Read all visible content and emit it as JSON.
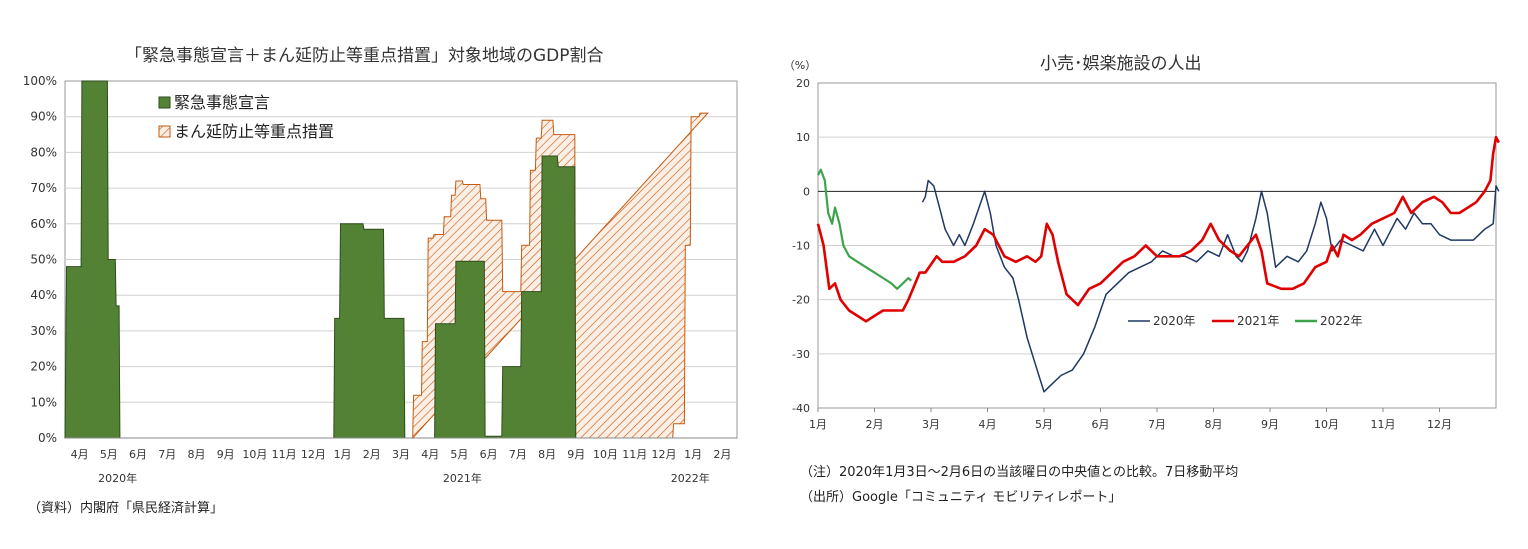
{
  "left": {
    "source": "（資料）内閣府「県民経済計算」",
    "chart_data": {
      "type": "area",
      "title": "「緊急事態宣言＋まん延防止等重点措置」対象地域のGDP割合",
      "ylim": [
        0,
        100
      ],
      "yticks": [
        "0%",
        "10%",
        "20%",
        "30%",
        "40%",
        "50%",
        "60%",
        "70%",
        "80%",
        "90%",
        "100%"
      ],
      "month_labels": [
        "4月",
        "5月",
        "6月",
        "7月",
        "8月",
        "9月",
        "10月",
        "11月",
        "12月",
        "1月",
        "2月",
        "3月",
        "4月",
        "5月",
        "6月",
        "7月",
        "8月",
        "9月",
        "10月",
        "11月",
        "12月",
        "1月",
        "2月"
      ],
      "year_labels": [
        {
          "label": "2020年",
          "month_index": 1.8
        },
        {
          "label": "2021年",
          "month_index": 13.6
        },
        {
          "label": "2022年",
          "month_index": 21.4
        }
      ],
      "series": [
        {
          "name": "緊急事態宣言",
          "color": "#548235",
          "points": [
            [
              0.0,
              0
            ],
            [
              0.05,
              48
            ],
            [
              0.55,
              48
            ],
            [
              0.58,
              100
            ],
            [
              1.45,
              100
            ],
            [
              1.48,
              50
            ],
            [
              1.72,
              50
            ],
            [
              1.75,
              37
            ],
            [
              1.85,
              37
            ],
            [
              1.88,
              0
            ],
            [
              9.2,
              0
            ],
            [
              9.23,
              33.5
            ],
            [
              9.4,
              33.5
            ],
            [
              9.43,
              60
            ],
            [
              10.2,
              60
            ],
            [
              10.23,
              58.5
            ],
            [
              10.9,
              58.5
            ],
            [
              10.93,
              33.5
            ],
            [
              11.6,
              33.5
            ],
            [
              11.63,
              0
            ],
            [
              12.65,
              0
            ],
            [
              12.68,
              32
            ],
            [
              13.35,
              32
            ],
            [
              13.38,
              49.5
            ],
            [
              14.35,
              49.5
            ],
            [
              14.38,
              0.5
            ],
            [
              14.95,
              0.5
            ],
            [
              14.98,
              20
            ],
            [
              15.6,
              20
            ],
            [
              15.63,
              41
            ],
            [
              16.3,
              41
            ],
            [
              16.33,
              79
            ],
            [
              16.85,
              79
            ],
            [
              16.88,
              76
            ],
            [
              17.45,
              76
            ],
            [
              17.48,
              0
            ]
          ]
        },
        {
          "name": "まん延防止等重点措置",
          "color": "#C55A11",
          "points": [
            [
              11.9,
              0
            ],
            [
              11.93,
              12
            ],
            [
              12.2,
              12
            ],
            [
              12.23,
              27
            ],
            [
              12.4,
              27
            ],
            [
              12.43,
              56
            ],
            [
              12.6,
              56
            ],
            [
              12.63,
              57
            ],
            [
              12.95,
              57
            ],
            [
              12.98,
              62
            ],
            [
              13.2,
              62
            ],
            [
              13.23,
              68
            ],
            [
              13.35,
              68
            ],
            [
              13.38,
              72
            ],
            [
              13.6,
              72
            ],
            [
              13.63,
              71
            ],
            [
              14.2,
              71
            ],
            [
              14.23,
              67
            ],
            [
              14.4,
              67
            ],
            [
              14.43,
              61
            ],
            [
              14.95,
              61
            ],
            [
              14.98,
              41
            ],
            [
              15.6,
              41
            ],
            [
              15.63,
              54
            ],
            [
              15.9,
              54
            ],
            [
              15.93,
              75
            ],
            [
              16.1,
              75
            ],
            [
              16.13,
              84
            ],
            [
              16.3,
              84
            ],
            [
              16.33,
              89
            ],
            [
              16.7,
              89
            ],
            [
              16.73,
              85
            ],
            [
              17.45,
              85
            ],
            [
              17.48,
              0
            ],
            [
              20.8,
              0
            ],
            [
              20.83,
              4
            ],
            [
              21.2,
              4
            ],
            [
              21.23,
              54
            ],
            [
              21.4,
              54
            ],
            [
              21.43,
              90
            ],
            [
              21.7,
              90
            ],
            [
              21.73,
              91
            ],
            [
              22.0,
              91
            ]
          ]
        }
      ]
    }
  },
  "right": {
    "notes": [
      "（注）2020年1月3日～2月6日の当該曜日の中央値との比較。7日移動平均",
      "（出所）Google「コミュニティ モビリティレポート」"
    ],
    "chart_data": {
      "type": "line",
      "title": "小売･娯楽施設の人出",
      "ylabel": "（%）",
      "ylim": [
        -40,
        20
      ],
      "yticks": [
        "-40",
        "-30",
        "-20",
        "-10",
        "0",
        "10",
        "20"
      ],
      "month_labels": [
        "1月",
        "2月",
        "3月",
        "4月",
        "5月",
        "6月",
        "7月",
        "8月",
        "9月",
        "10月",
        "11月",
        "12月"
      ],
      "series": [
        {
          "name": "2020年",
          "color": "#1F3864",
          "points": [
            [
              1.85,
              -2
            ],
            [
              1.9,
              -1
            ],
            [
              1.95,
              2
            ],
            [
              2.05,
              1
            ],
            [
              2.15,
              -3
            ],
            [
              2.25,
              -7
            ],
            [
              2.4,
              -10
            ],
            [
              2.5,
              -8
            ],
            [
              2.6,
              -10
            ],
            [
              2.75,
              -6
            ],
            [
              2.85,
              -3
            ],
            [
              2.95,
              0
            ],
            [
              3.05,
              -4
            ],
            [
              3.15,
              -10
            ],
            [
              3.3,
              -14
            ],
            [
              3.45,
              -16
            ],
            [
              3.55,
              -20
            ],
            [
              3.7,
              -27
            ],
            [
              3.85,
              -32
            ],
            [
              4.0,
              -37
            ],
            [
              4.1,
              -36
            ],
            [
              4.3,
              -34
            ],
            [
              4.5,
              -33
            ],
            [
              4.7,
              -30
            ],
            [
              4.9,
              -25
            ],
            [
              5.1,
              -19
            ],
            [
              5.3,
              -17
            ],
            [
              5.5,
              -15
            ],
            [
              5.7,
              -14
            ],
            [
              5.9,
              -13
            ],
            [
              6.1,
              -11
            ],
            [
              6.3,
              -12
            ],
            [
              6.5,
              -12
            ],
            [
              6.7,
              -13
            ],
            [
              6.9,
              -11
            ],
            [
              7.1,
              -12
            ],
            [
              7.25,
              -8
            ],
            [
              7.4,
              -12
            ],
            [
              7.5,
              -13
            ],
            [
              7.6,
              -11
            ],
            [
              7.75,
              -5
            ],
            [
              7.85,
              0
            ],
            [
              7.95,
              -4
            ],
            [
              8.1,
              -14
            ],
            [
              8.3,
              -12
            ],
            [
              8.5,
              -13
            ],
            [
              8.65,
              -11
            ],
            [
              8.8,
              -6
            ],
            [
              8.9,
              -2
            ],
            [
              9.0,
              -5
            ],
            [
              9.1,
              -11
            ],
            [
              9.25,
              -9
            ],
            [
              9.45,
              -10
            ],
            [
              9.65,
              -11
            ],
            [
              9.85,
              -7
            ],
            [
              10.0,
              -10
            ],
            [
              10.1,
              -8
            ],
            [
              10.25,
              -5
            ],
            [
              10.4,
              -7
            ],
            [
              10.55,
              -4
            ],
            [
              10.7,
              -6
            ],
            [
              10.85,
              -6
            ],
            [
              11.0,
              -8
            ],
            [
              11.2,
              -9
            ],
            [
              11.4,
              -9
            ],
            [
              11.6,
              -9
            ],
            [
              11.8,
              -7
            ],
            [
              11.95,
              -6
            ],
            [
              12.0,
              1
            ],
            [
              12.05,
              0
            ]
          ]
        },
        {
          "name": "2021年",
          "color": "#E00000",
          "points": [
            [
              0.0,
              -6
            ],
            [
              0.1,
              -10
            ],
            [
              0.2,
              -18
            ],
            [
              0.3,
              -17
            ],
            [
              0.4,
              -20
            ],
            [
              0.55,
              -22
            ],
            [
              0.7,
              -23
            ],
            [
              0.85,
              -24
            ],
            [
              1.0,
              -23
            ],
            [
              1.15,
              -22
            ],
            [
              1.3,
              -22
            ],
            [
              1.5,
              -22
            ],
            [
              1.6,
              -20
            ],
            [
              1.8,
              -15
            ],
            [
              1.9,
              -15
            ],
            [
              2.1,
              -12
            ],
            [
              2.2,
              -13
            ],
            [
              2.4,
              -13
            ],
            [
              2.6,
              -12
            ],
            [
              2.8,
              -10
            ],
            [
              2.95,
              -7
            ],
            [
              3.1,
              -8
            ],
            [
              3.3,
              -12
            ],
            [
              3.5,
              -13
            ],
            [
              3.7,
              -12
            ],
            [
              3.85,
              -13
            ],
            [
              3.95,
              -12
            ],
            [
              4.05,
              -6
            ],
            [
              4.15,
              -8
            ],
            [
              4.25,
              -13
            ],
            [
              4.4,
              -19
            ],
            [
              4.6,
              -21
            ],
            [
              4.8,
              -18
            ],
            [
              5.0,
              -17
            ],
            [
              5.2,
              -15
            ],
            [
              5.4,
              -13
            ],
            [
              5.6,
              -12
            ],
            [
              5.8,
              -10
            ],
            [
              6.0,
              -12
            ],
            [
              6.2,
              -12
            ],
            [
              6.4,
              -12
            ],
            [
              6.6,
              -11
            ],
            [
              6.8,
              -9
            ],
            [
              6.95,
              -6
            ],
            [
              7.1,
              -9
            ],
            [
              7.3,
              -11
            ],
            [
              7.45,
              -12
            ],
            [
              7.6,
              -10
            ],
            [
              7.75,
              -8
            ],
            [
              7.85,
              -11
            ],
            [
              7.95,
              -17
            ],
            [
              8.2,
              -18
            ],
            [
              8.4,
              -18
            ],
            [
              8.6,
              -17
            ],
            [
              8.8,
              -14
            ],
            [
              9.0,
              -13
            ],
            [
              9.1,
              -10
            ],
            [
              9.2,
              -12
            ],
            [
              9.3,
              -8
            ],
            [
              9.45,
              -9
            ],
            [
              9.6,
              -8
            ],
            [
              9.8,
              -6
            ],
            [
              10.0,
              -5
            ],
            [
              10.2,
              -4
            ],
            [
              10.35,
              -1
            ],
            [
              10.5,
              -4
            ],
            [
              10.7,
              -2
            ],
            [
              10.9,
              -1
            ],
            [
              11.05,
              -2
            ],
            [
              11.2,
              -4
            ],
            [
              11.35,
              -4
            ],
            [
              11.5,
              -3
            ],
            [
              11.65,
              -2
            ],
            [
              11.8,
              0
            ],
            [
              11.9,
              2
            ],
            [
              11.95,
              7
            ],
            [
              12.0,
              10
            ],
            [
              12.05,
              9
            ]
          ]
        },
        {
          "name": "2022年",
          "color": "#3FA34D",
          "points": [
            [
              0.0,
              3
            ],
            [
              0.05,
              4
            ],
            [
              0.12,
              2
            ],
            [
              0.18,
              -4
            ],
            [
              0.25,
              -6
            ],
            [
              0.3,
              -3
            ],
            [
              0.38,
              -6
            ],
            [
              0.45,
              -10
            ],
            [
              0.55,
              -12
            ],
            [
              0.7,
              -13
            ],
            [
              0.85,
              -14
            ],
            [
              1.0,
              -15
            ],
            [
              1.15,
              -16
            ],
            [
              1.3,
              -17
            ],
            [
              1.4,
              -18
            ],
            [
              1.5,
              -17
            ],
            [
              1.6,
              -16
            ],
            [
              1.65,
              -16.5
            ]
          ]
        }
      ]
    }
  }
}
